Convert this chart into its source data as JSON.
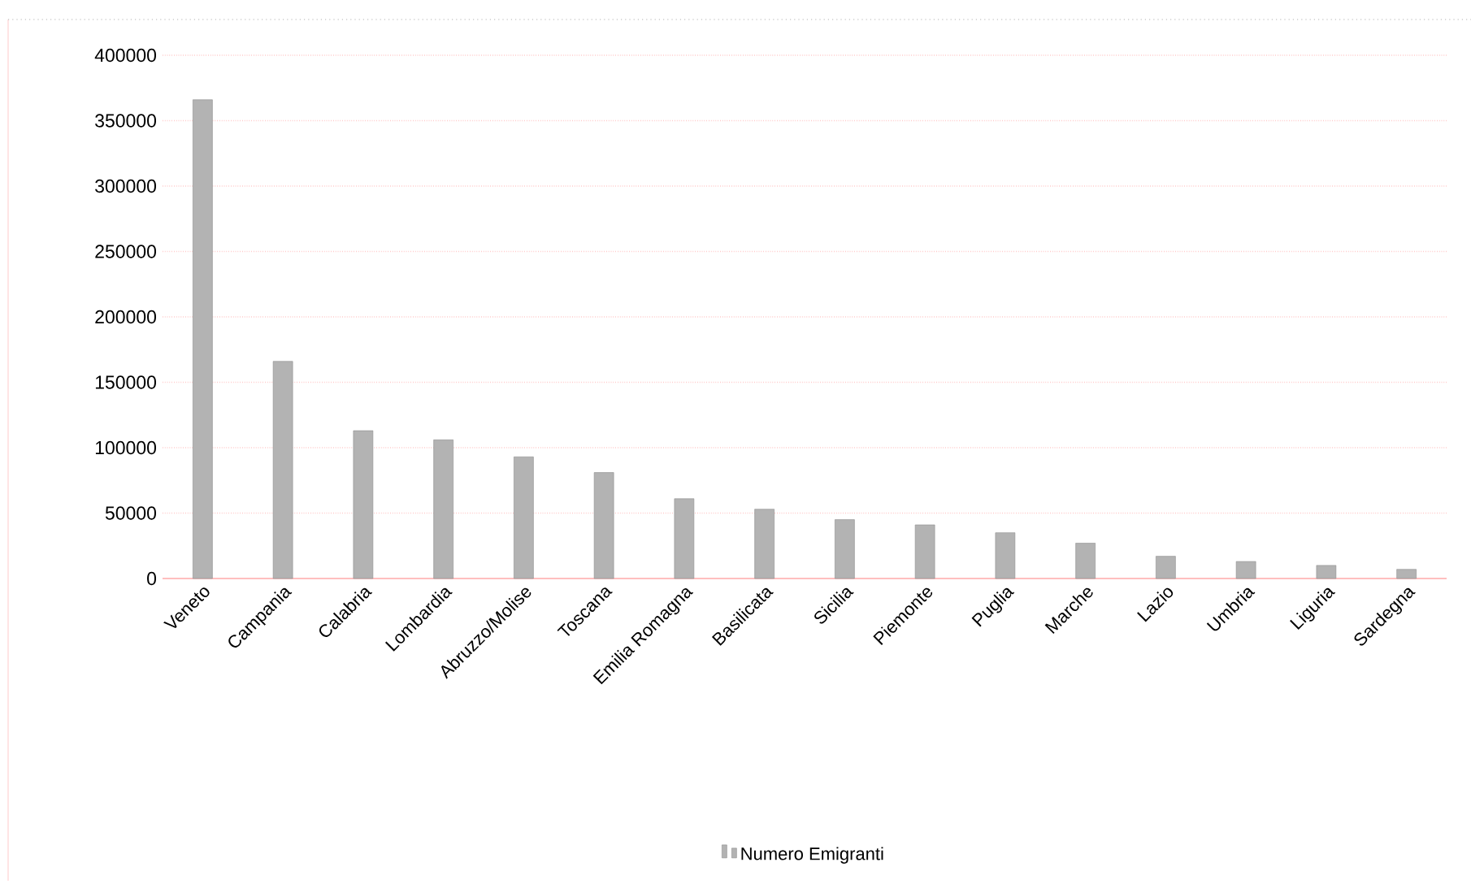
{
  "chart_data": {
    "type": "bar",
    "categories": [
      "Veneto",
      "Campania",
      "Calabria",
      "Lombardia",
      "Abruzzo/Molise",
      "Toscana",
      "Emilia Romagna",
      "Basilicata",
      "Sicilia",
      "Piemonte",
      "Puglia",
      "Marche",
      "Lazio",
      "Umbria",
      "Liguria",
      "Sardegna"
    ],
    "series": [
      {
        "name": "Numero Emigranti",
        "color": "#b3b3b3",
        "values": [
          366000,
          166000,
          113000,
          106000,
          93000,
          81000,
          61000,
          53000,
          45000,
          41000,
          35000,
          27000,
          17000,
          13000,
          10000,
          7000
        ]
      }
    ],
    "ylim": [
      0,
      400000
    ],
    "yticks": [
      0,
      50000,
      100000,
      150000,
      200000,
      250000,
      300000,
      350000,
      400000
    ],
    "grid": "y",
    "legend": "bottom"
  }
}
